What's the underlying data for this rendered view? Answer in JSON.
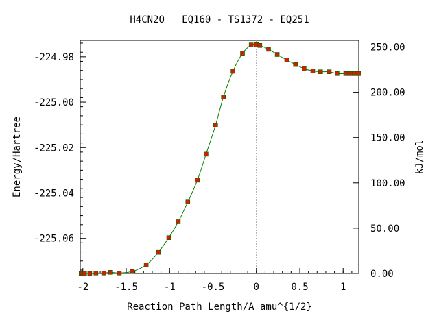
{
  "chart_data": {
    "type": "line",
    "title": "H4CN2O   EQ160 - TS1372 - EQ251",
    "xlabel": "Reaction Path Length/A amu^{1/2}",
    "ylabel_left": "Energy/Hartree",
    "ylabel_right": "kJ/mol",
    "xlim": [
      -2.03,
      1.18
    ],
    "ylim": [
      -225.0755,
      -224.9728
    ],
    "x_ticks": [
      {
        "value": -2,
        "label": "-2"
      },
      {
        "value": -1.5,
        "label": "-1.5"
      },
      {
        "value": -1,
        "label": "-1"
      },
      {
        "value": -0.5,
        "label": "-0.5"
      },
      {
        "value": 0,
        "label": "0"
      },
      {
        "value": 0.5,
        "label": "0.5"
      },
      {
        "value": 1,
        "label": "1"
      }
    ],
    "y_ticks_left": [
      {
        "value": -224.98,
        "label": "-224.98"
      },
      {
        "value": -225.0,
        "label": "-225.00"
      },
      {
        "value": -225.02,
        "label": "-225.02"
      },
      {
        "value": -225.04,
        "label": "-225.04"
      },
      {
        "value": -225.06,
        "label": "-225.06"
      }
    ],
    "y_ticks_right": [
      {
        "value": 0,
        "label": "0.00"
      },
      {
        "value": 50,
        "label": "50.00"
      },
      {
        "value": 100,
        "label": "100.00"
      },
      {
        "value": 150,
        "label": "150.00"
      },
      {
        "value": 200,
        "label": "200.00"
      },
      {
        "value": 250,
        "label": "250.00"
      }
    ],
    "right_axis_range": [
      0,
      257.2
    ],
    "ts_marker_x": 0,
    "colors": {
      "curve": "#008000",
      "points": "#cc2200",
      "ts_line": "#999999",
      "axis": "#000000"
    },
    "series": [
      {
        "x": [
          -2.02,
          -2.0,
          -1.98,
          -1.92,
          -1.85,
          -1.76,
          -1.68,
          -1.58,
          -1.43,
          -1.27,
          -1.13,
          -1.01,
          -0.9,
          -0.79,
          -0.68,
          -0.58,
          -0.47,
          -0.38,
          -0.27,
          -0.16,
          -0.06,
          0.0,
          0.04,
          0.14,
          0.24,
          0.35,
          0.45,
          0.55,
          0.65,
          0.74,
          0.84,
          0.93,
          1.03,
          1.07,
          1.1,
          1.13,
          1.16,
          1.18
        ],
        "y": [
          -225.0755,
          -225.0755,
          -225.0755,
          -225.0755,
          -225.0753,
          -225.0753,
          -225.075,
          -225.0753,
          -225.0746,
          -225.0717,
          -225.0662,
          -225.0597,
          -225.0527,
          -225.044,
          -225.0344,
          -225.0229,
          -225.0101,
          -224.9977,
          -224.9864,
          -224.9785,
          -224.9748,
          -224.9747,
          -224.975,
          -224.9767,
          -224.979,
          -224.9814,
          -224.9834,
          -224.9852,
          -224.9862,
          -224.9866,
          -224.9866,
          -224.9874,
          -224.9874,
          -224.9874,
          -224.9874,
          -224.9874,
          -224.9874,
          -224.9874
        ]
      }
    ]
  }
}
